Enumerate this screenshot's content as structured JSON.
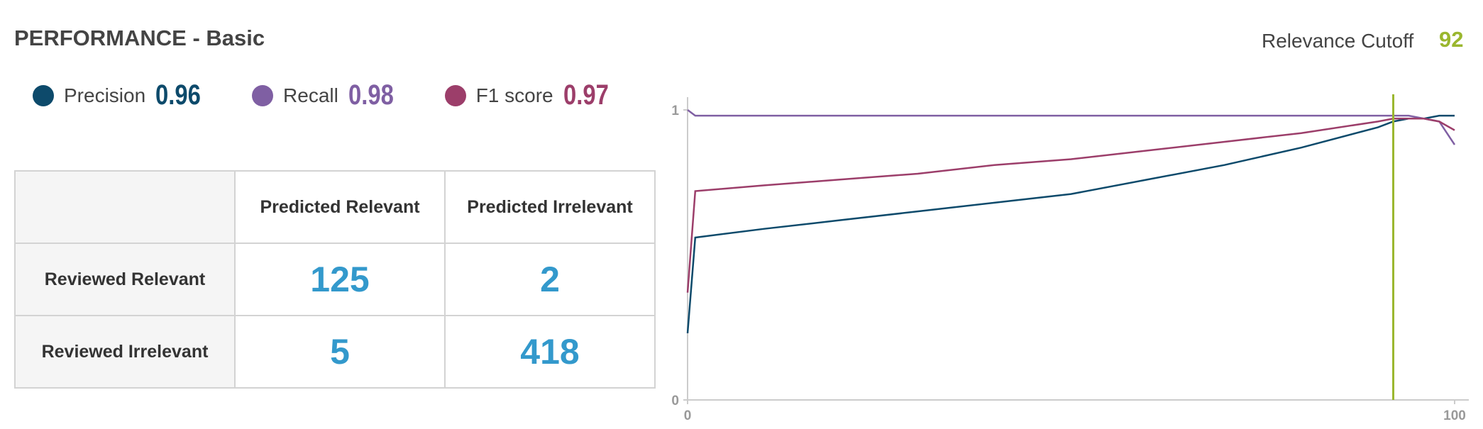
{
  "header": {
    "title": "PERFORMANCE - Basic"
  },
  "cutoff": {
    "label": "Relevance Cutoff",
    "value": 92,
    "color": "#9ab72e"
  },
  "metrics": [
    {
      "name": "Precision",
      "value": 0.96,
      "color": "#0d4a6b"
    },
    {
      "name": "Recall",
      "value": 0.98,
      "color": "#7f5fa3"
    },
    {
      "name": "F1 score",
      "value": 0.97,
      "color": "#9c3e6a"
    }
  ],
  "table": {
    "columns": [
      "Predicted Relevant",
      "Predicted Irrelevant"
    ],
    "rows": [
      {
        "label": "Reviewed Relevant",
        "values": [
          125,
          2
        ]
      },
      {
        "label": "Reviewed Irrelevant",
        "values": [
          5,
          418
        ]
      }
    ]
  },
  "chart_data": {
    "type": "line",
    "x": [
      0,
      1,
      10,
      20,
      30,
      40,
      50,
      60,
      70,
      80,
      90,
      92,
      94,
      96,
      98,
      100
    ],
    "series": [
      {
        "name": "Precision",
        "color": "#0d4a6b",
        "values": [
          0.23,
          0.56,
          0.59,
          0.62,
          0.65,
          0.68,
          0.71,
          0.76,
          0.81,
          0.87,
          0.94,
          0.96,
          0.97,
          0.97,
          0.98,
          0.98
        ]
      },
      {
        "name": "Recall",
        "color": "#7f5fa3",
        "values": [
          1.0,
          0.98,
          0.98,
          0.98,
          0.98,
          0.98,
          0.98,
          0.98,
          0.98,
          0.98,
          0.98,
          0.98,
          0.98,
          0.97,
          0.96,
          0.88
        ]
      },
      {
        "name": "F1 score",
        "color": "#9c3e6a",
        "values": [
          0.37,
          0.72,
          0.74,
          0.76,
          0.78,
          0.81,
          0.83,
          0.86,
          0.89,
          0.92,
          0.96,
          0.97,
          0.97,
          0.97,
          0.96,
          0.93
        ]
      }
    ],
    "xlim": [
      0,
      100
    ],
    "xticks": [
      0,
      100
    ],
    "ylim": [
      0,
      1
    ],
    "yticks": [
      0,
      1
    ]
  }
}
